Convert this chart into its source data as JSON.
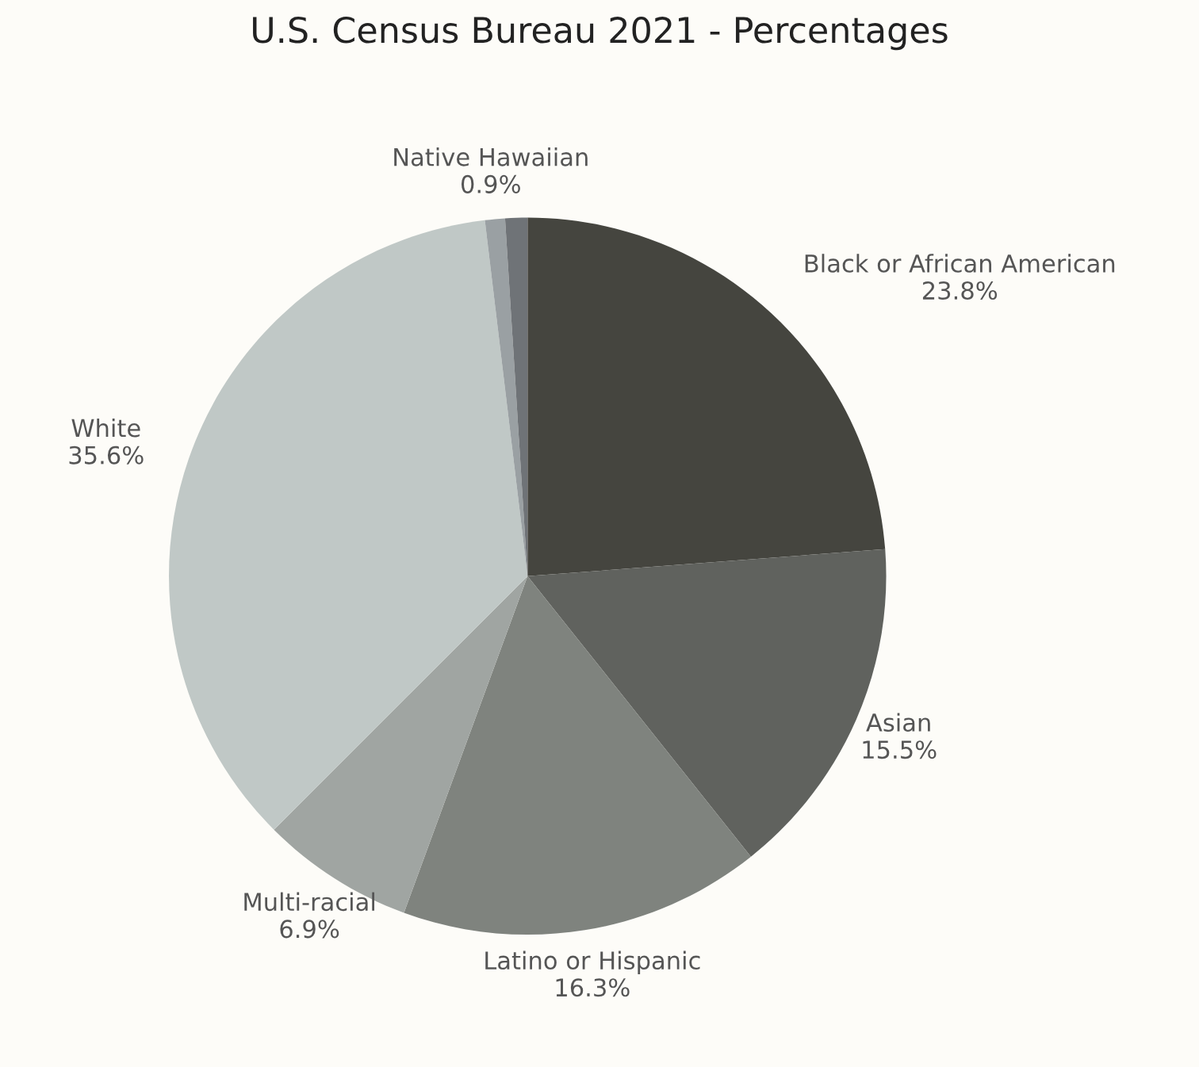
{
  "chart_data": {
    "type": "pie",
    "title": "U.S. Census Bureau 2021 - Percentages",
    "categories": [
      "Black or African American",
      "Asian",
      "Latino or Hispanic",
      "Multi-racial",
      "White",
      "Native Hawaiian",
      null
    ],
    "values": [
      23.8,
      15.5,
      16.3,
      6.9,
      35.6,
      0.9,
      1.0
    ],
    "value_labels": [
      "23.8%",
      "15.5%",
      "16.3%",
      "6.9%",
      "35.6%",
      "0.9%",
      null
    ],
    "colors": [
      "#45453f",
      "#60625e",
      "#7f837e",
      "#a0a5a2",
      "#c0c8c6",
      "#9aa0a3",
      "#6f7377"
    ]
  }
}
